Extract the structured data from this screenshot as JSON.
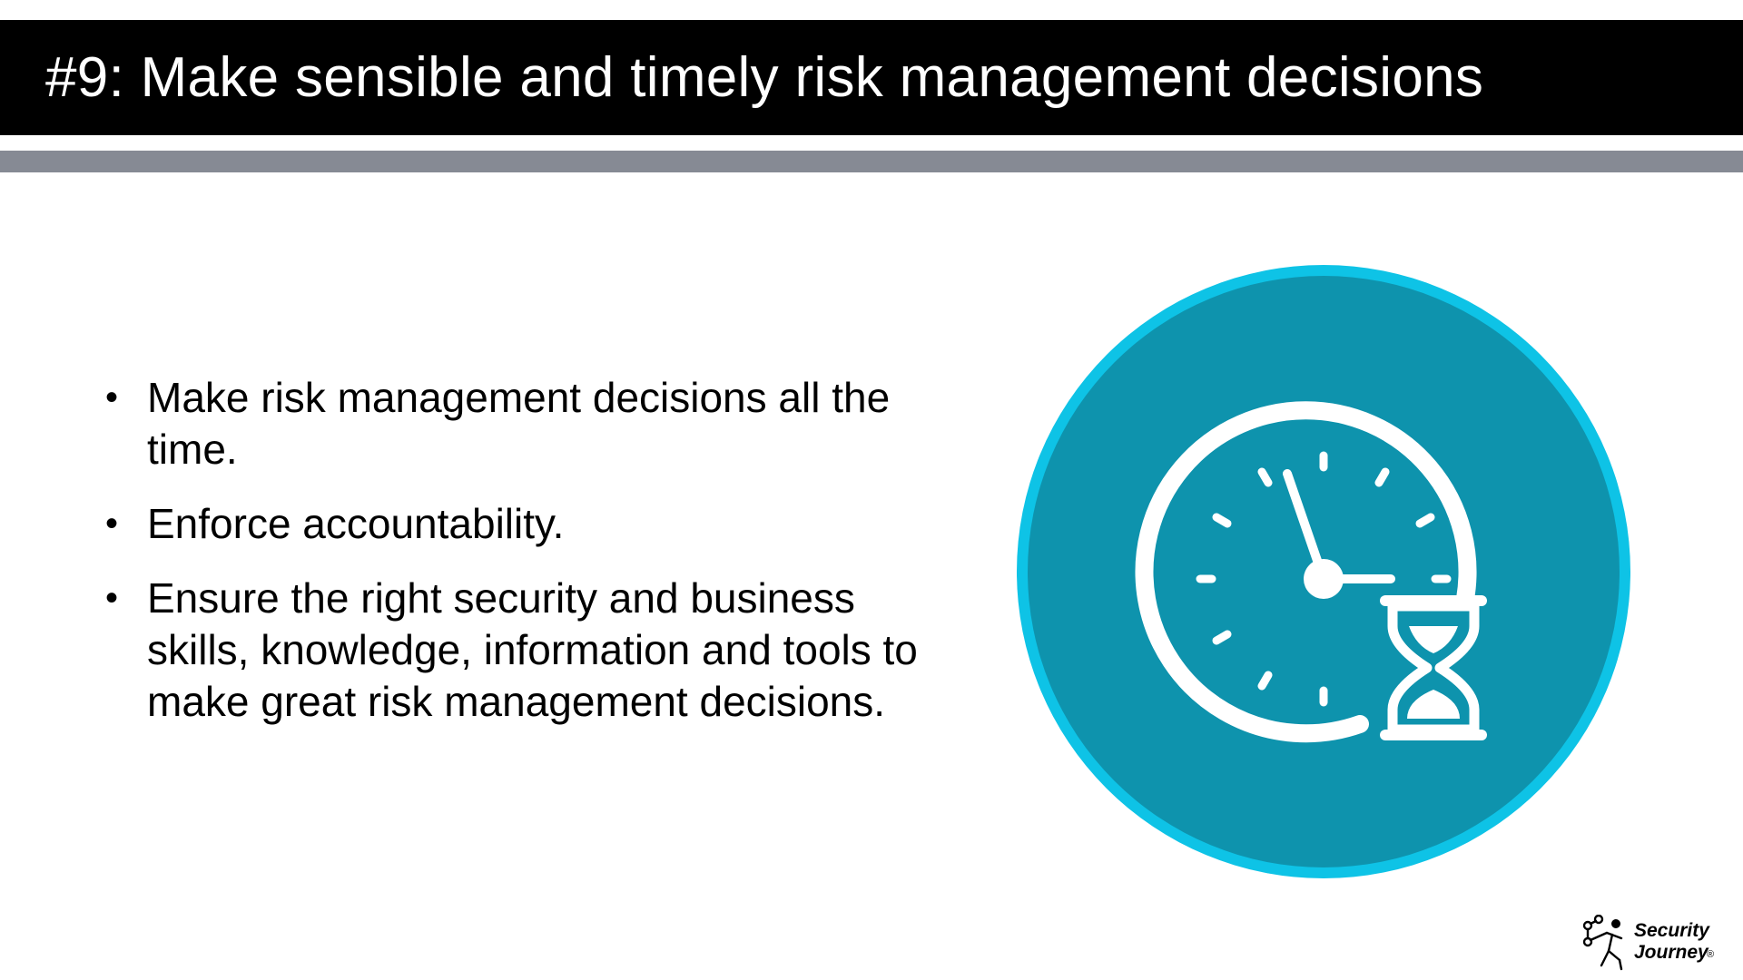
{
  "slide": {
    "title": "#9: Make sensible and timely risk management decisions",
    "bullets": [
      "Make risk management decisions all the time.",
      "Enforce accountability.",
      "Ensure the right security and business skills, knowledge, information and tools to make great risk management decisions."
    ],
    "bullet_symbol": "•"
  },
  "icon": {
    "name": "clock-hourglass-icon",
    "outer_ring_color": "#0ec3e6",
    "inner_fill_color": "#0e93ad",
    "glyph_color": "#ffffff"
  },
  "logo": {
    "line1": "Security",
    "line2": "Journey",
    "reg": "®"
  },
  "colors": {
    "title_bar": "#000000",
    "title_text": "#ffffff",
    "accent_bar": "#868a94",
    "body_text": "#000000"
  }
}
